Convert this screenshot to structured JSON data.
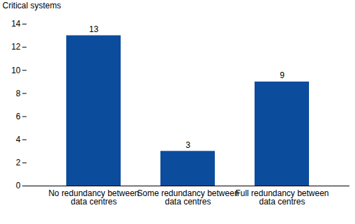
{
  "chart_data": {
    "type": "bar",
    "ylabel": "Critical systems",
    "categories": [
      "No redundancy between data centres",
      "Some redundancy between data centres",
      "Full redundancy between data centres"
    ],
    "values": [
      13,
      3,
      9
    ],
    "color": "#0b4c9c",
    "ylim": [
      0,
      14
    ],
    "yticks": [
      0,
      2,
      4,
      6,
      8,
      10,
      12,
      14
    ],
    "grid": false,
    "data_labels": true
  }
}
